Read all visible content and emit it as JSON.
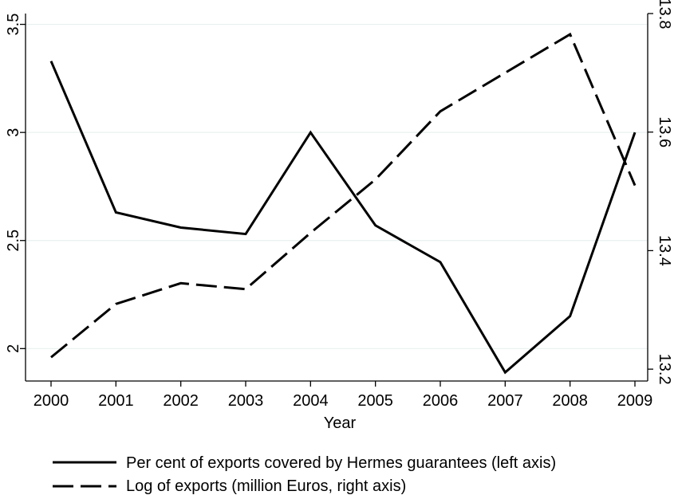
{
  "chart_data": {
    "type": "line",
    "x": [
      2000,
      2001,
      2002,
      2003,
      2004,
      2005,
      2006,
      2007,
      2008,
      2009
    ],
    "xlabel": "Year",
    "ylabel": "",
    "ylabel_right": "",
    "xlim": [
      2000,
      2009
    ],
    "ylim": [
      1.85,
      3.55
    ],
    "ylim_right": [
      13.18,
      13.8
    ],
    "xticks": [
      "2000",
      "2001",
      "2002",
      "2003",
      "2004",
      "2005",
      "2006",
      "2007",
      "2008",
      "2009"
    ],
    "yticks": [
      "2",
      "2.5",
      "3",
      "3.5"
    ],
    "yticks_right": [
      "13.2",
      "13.4",
      "13.6",
      "13.8"
    ],
    "grid": true,
    "legend_position": "bottom",
    "series": [
      {
        "name": "Per cent of exports covered by Hermes guarantees (left axis)",
        "axis": "left",
        "style": "solid",
        "color": "#000000",
        "values": [
          3.33,
          2.63,
          2.56,
          2.53,
          3.0,
          2.57,
          2.4,
          1.89,
          2.15,
          3.0
        ]
      },
      {
        "name": "Log of exports (million Euros, right axis)",
        "axis": "right",
        "style": "dashed",
        "color": "#000000",
        "values": [
          13.22,
          13.31,
          13.345,
          13.335,
          13.43,
          13.52,
          13.635,
          13.7,
          13.765,
          13.51
        ]
      }
    ]
  }
}
